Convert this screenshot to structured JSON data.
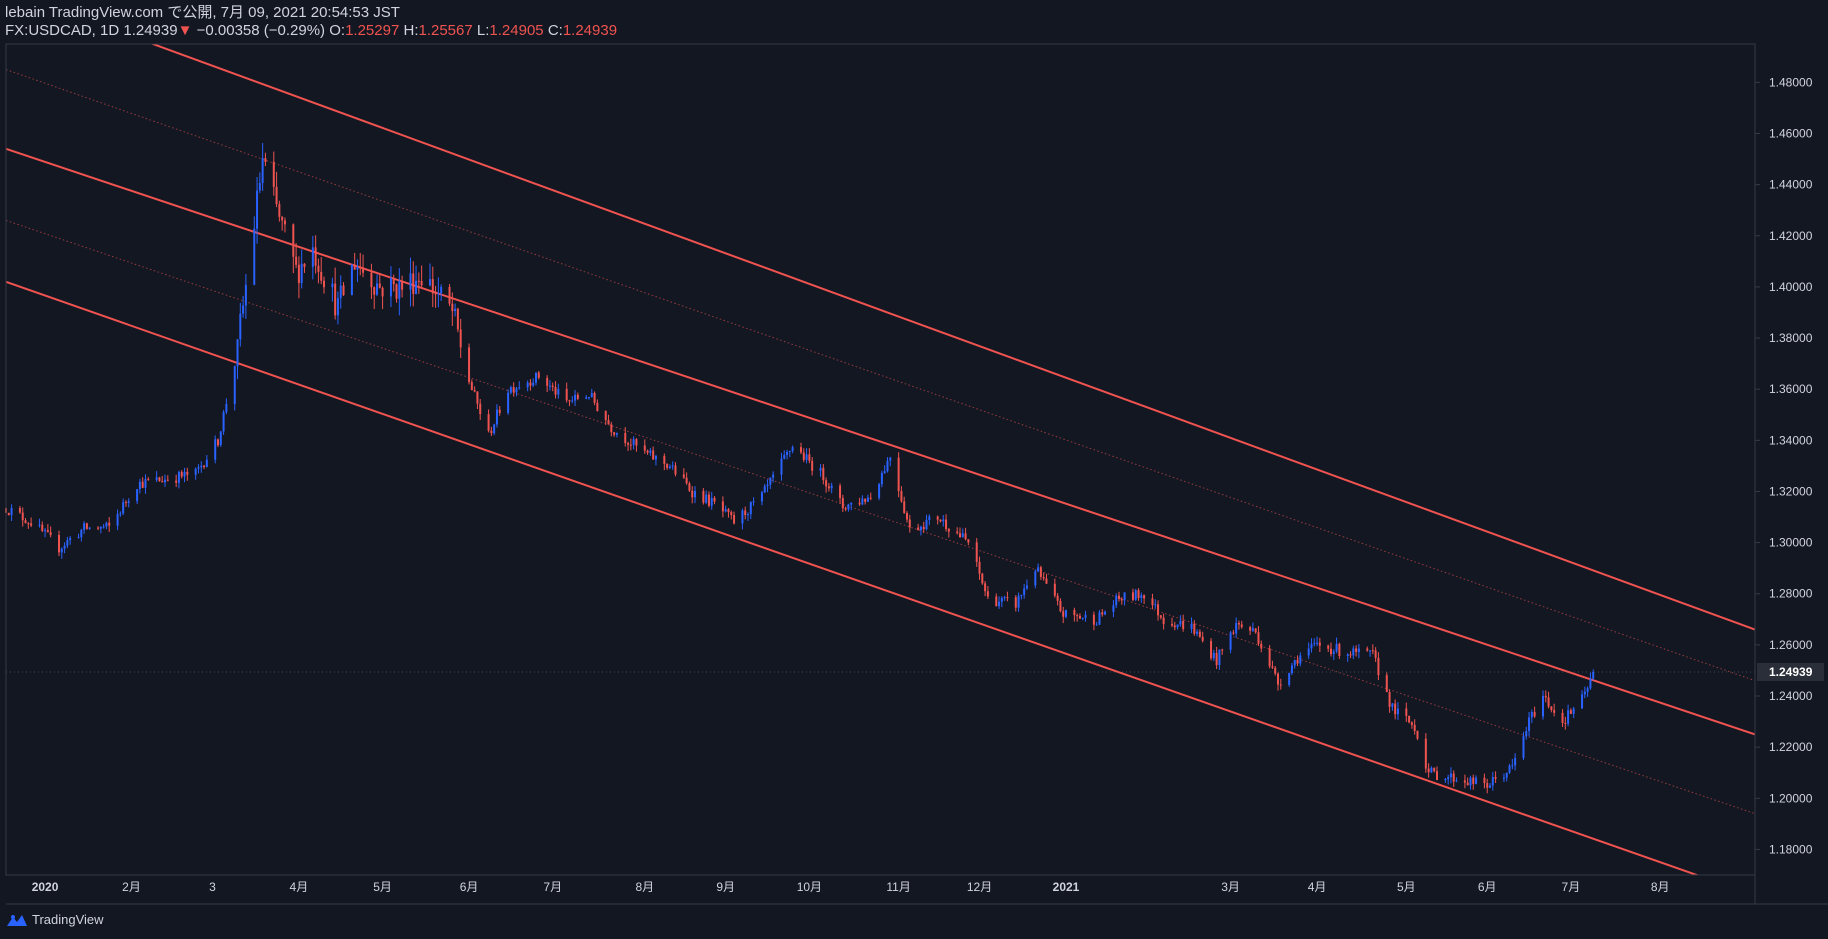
{
  "header": {
    "published": "lebain TradingView.com で公開, 7月 09, 2021 20:54:53 JST",
    "symbol": "FX:USDCAD, 1D",
    "last": "1.24939",
    "change_arrow": "▼",
    "change": "−0.00358 (−0.29%)",
    "o_label": "O:",
    "o_value": "1.25297",
    "h_label": "H:",
    "h_value": "1.25567",
    "l_label": "L:",
    "l_value": "1.24905",
    "c_label": "C:",
    "c_value": "1.24939"
  },
  "footer": {
    "brand": "TradingView",
    "logo_icon": "tradingview-logo-icon"
  },
  "colors": {
    "background": "#131722",
    "up": "#2962ff",
    "down": "#ef5350",
    "channel": "#f05350",
    "text": "#d1d4dc",
    "axis_line": "#363a45"
  },
  "chart_data": {
    "type": "candlestick",
    "symbol": "FX:USDCAD",
    "interval": "1D",
    "ylim": [
      1.17,
      1.495
    ],
    "yticks": [
      "1.18000",
      "1.20000",
      "1.22000",
      "1.24000",
      "1.26000",
      "1.28000",
      "1.30000",
      "1.32000",
      "1.34000",
      "1.36000",
      "1.38000",
      "1.40000",
      "1.42000",
      "1.44000",
      "1.46000",
      "1.48000"
    ],
    "last_price_label": "1.24939",
    "last_price": 1.24939,
    "xlim": [
      "2019-12-18",
      "2021-09-05"
    ],
    "xticks": [
      {
        "date": "2020-01-01",
        "label": "2020",
        "bold": true
      },
      {
        "date": "2020-02-01",
        "label": "2月"
      },
      {
        "date": "2020-03-01",
        "label": "3"
      },
      {
        "date": "2020-04-01",
        "label": "4月"
      },
      {
        "date": "2020-05-01",
        "label": "5月"
      },
      {
        "date": "2020-06-01",
        "label": "6月"
      },
      {
        "date": "2020-07-01",
        "label": "7月"
      },
      {
        "date": "2020-08-03",
        "label": "8月"
      },
      {
        "date": "2020-09-01",
        "label": "9月"
      },
      {
        "date": "2020-10-01",
        "label": "10月"
      },
      {
        "date": "2020-11-02",
        "label": "11月"
      },
      {
        "date": "2020-12-01",
        "label": "12月"
      },
      {
        "date": "2021-01-01",
        "label": "2021",
        "bold": true
      },
      {
        "date": "2021-03-01",
        "label": "3月"
      },
      {
        "date": "2021-04-01",
        "label": "4月"
      },
      {
        "date": "2021-05-03",
        "label": "5月"
      },
      {
        "date": "2021-06-01",
        "label": "6月"
      },
      {
        "date": "2021-07-01",
        "label": "7月"
      },
      {
        "date": "2021-08-02",
        "label": "8月"
      }
    ],
    "channel": {
      "solid": [
        {
          "start": [
            "2019-12-18",
            1.516
          ],
          "end": [
            "2021-09-05",
            1.266
          ]
        },
        {
          "start": [
            "2019-12-18",
            1.454
          ],
          "end": [
            "2021-09-05",
            1.225
          ]
        },
        {
          "start": [
            "2019-12-18",
            1.402
          ],
          "end": [
            "2021-09-05",
            1.162
          ]
        }
      ],
      "dotted": [
        {
          "start": [
            "2019-12-18",
            1.485
          ],
          "end": [
            "2021-09-05",
            1.246
          ]
        },
        {
          "start": [
            "2019-12-18",
            1.426
          ],
          "end": [
            "2021-09-05",
            1.194
          ]
        }
      ]
    },
    "price_path": [
      [
        "2019-12-18",
        1.3135
      ],
      [
        "2019-12-27",
        1.308
      ],
      [
        "2020-01-06",
        1.298
      ],
      [
        "2020-01-15",
        1.3055
      ],
      [
        "2020-01-24",
        1.306
      ],
      [
        "2020-02-03",
        1.323
      ],
      [
        "2020-02-14",
        1.325
      ],
      [
        "2020-02-24",
        1.327
      ],
      [
        "2020-03-03",
        1.34
      ],
      [
        "2020-03-09",
        1.37
      ],
      [
        "2020-03-13",
        1.4
      ],
      [
        "2020-03-19",
        1.45
      ],
      [
        "2020-03-24",
        1.43
      ],
      [
        "2020-03-31",
        1.406
      ],
      [
        "2020-04-06",
        1.415
      ],
      [
        "2020-04-15",
        1.392
      ],
      [
        "2020-04-21",
        1.41
      ],
      [
        "2020-04-30",
        1.4
      ],
      [
        "2020-05-08",
        1.4
      ],
      [
        "2020-05-15",
        1.405
      ],
      [
        "2020-05-26",
        1.39
      ],
      [
        "2020-06-02",
        1.36
      ],
      [
        "2020-06-08",
        1.342
      ],
      [
        "2020-06-15",
        1.36
      ],
      [
        "2020-06-26",
        1.365
      ],
      [
        "2020-07-06",
        1.355
      ],
      [
        "2020-07-14",
        1.358
      ],
      [
        "2020-07-22",
        1.345
      ],
      [
        "2020-08-03",
        1.335
      ],
      [
        "2020-08-12",
        1.33
      ],
      [
        "2020-08-20",
        1.32
      ],
      [
        "2020-08-28",
        1.315
      ],
      [
        "2020-09-04",
        1.308
      ],
      [
        "2020-09-14",
        1.318
      ],
      [
        "2020-09-25",
        1.338
      ],
      [
        "2020-10-06",
        1.326
      ],
      [
        "2020-10-13",
        1.314
      ],
      [
        "2020-10-23",
        1.318
      ],
      [
        "2020-10-30",
        1.334
      ],
      [
        "2020-11-06",
        1.305
      ],
      [
        "2020-11-16",
        1.31
      ],
      [
        "2020-11-27",
        1.3
      ],
      [
        "2020-12-04",
        1.278
      ],
      [
        "2020-12-14",
        1.276
      ],
      [
        "2020-12-21",
        1.29
      ],
      [
        "2020-12-31",
        1.272
      ],
      [
        "2021-01-12",
        1.27
      ],
      [
        "2021-01-20",
        1.278
      ],
      [
        "2021-01-29",
        1.28
      ],
      [
        "2021-02-05",
        1.27
      ],
      [
        "2021-02-15",
        1.267
      ],
      [
        "2021-02-24",
        1.254
      ],
      [
        "2021-03-03",
        1.268
      ],
      [
        "2021-03-10",
        1.265
      ],
      [
        "2021-03-18",
        1.245
      ],
      [
        "2021-03-25",
        1.255
      ],
      [
        "2021-04-01",
        1.26
      ],
      [
        "2021-04-12",
        1.257
      ],
      [
        "2021-04-21",
        1.256
      ],
      [
        "2021-04-28",
        1.235
      ],
      [
        "2021-05-06",
        1.228
      ],
      [
        "2021-05-11",
        1.21
      ],
      [
        "2021-05-20",
        1.208
      ],
      [
        "2021-06-01",
        1.205
      ],
      [
        "2021-06-10",
        1.212
      ],
      [
        "2021-06-16",
        1.23
      ],
      [
        "2021-06-21",
        1.24
      ],
      [
        "2021-06-28",
        1.23
      ],
      [
        "2021-07-06",
        1.24
      ],
      [
        "2021-07-09",
        1.2494
      ]
    ]
  }
}
